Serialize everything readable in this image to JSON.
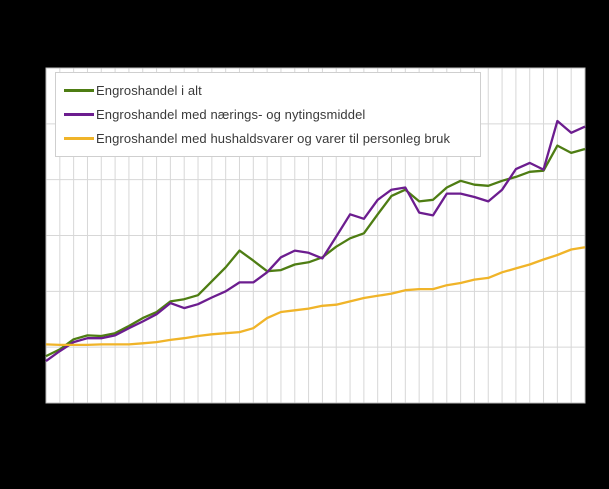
{
  "page": {
    "background_color": "#000000",
    "note": "axis tick labels are not visible in the image"
  },
  "plot": {
    "bg_color": "#ffffff",
    "grid_color": "#d7d7d7",
    "border_color": "#bdbdbd",
    "legend_border_color": "#cfcfcf",
    "legend_text_color": "#3a3a3a"
  },
  "chart_data": {
    "type": "line",
    "title": "",
    "xlabel": "",
    "ylabel": "",
    "x_tick_labels_visible": false,
    "y_tick_labels_visible": false,
    "ylim": [
      80,
      140
    ],
    "y_grid_step": 10,
    "grid": true,
    "legend_position": "top-left",
    "series": [
      {
        "name": "Engroshandel i alt",
        "color": "#4e7d13",
        "values": [
          88.4,
          89.6,
          91.4,
          92.1,
          92.0,
          92.5,
          93.8,
          95.2,
          96.3,
          98.2,
          98.6,
          99.3,
          101.8,
          104.3,
          107.3,
          105.5,
          103.6,
          103.8,
          104.8,
          105.2,
          106.1,
          108.0,
          109.5,
          110.4,
          113.8,
          117.1,
          118.2,
          116.1,
          116.4,
          118.6,
          119.8,
          119.1,
          118.9,
          119.8,
          120.5,
          121.4,
          121.6,
          126.1,
          124.8,
          125.5
        ]
      },
      {
        "name": "Engroshandel med nærings- og nytingsmiddel",
        "color": "#6c1d8f",
        "values": [
          87.5,
          89.3,
          90.9,
          91.6,
          91.6,
          92.1,
          93.4,
          94.6,
          95.9,
          97.9,
          97.0,
          97.7,
          98.9,
          100.0,
          101.6,
          101.6,
          103.4,
          106.1,
          107.3,
          106.9,
          105.9,
          109.8,
          113.8,
          113.0,
          116.4,
          118.2,
          118.6,
          114.1,
          113.6,
          117.5,
          117.5,
          116.9,
          116.1,
          118.2,
          121.9,
          123.0,
          121.8,
          130.5,
          128.4,
          129.5
        ]
      },
      {
        "name": "Engroshandel med hushaldsvarer og varer til personleg bruk",
        "color": "#f0b429",
        "values": [
          90.5,
          90.4,
          90.4,
          90.4,
          90.5,
          90.5,
          90.5,
          90.7,
          90.9,
          91.3,
          91.6,
          92.0,
          92.3,
          92.5,
          92.7,
          93.4,
          95.2,
          96.3,
          96.6,
          96.9,
          97.4,
          97.6,
          98.2,
          98.8,
          99.2,
          99.6,
          100.2,
          100.4,
          100.4,
          101.1,
          101.5,
          102.1,
          102.4,
          103.4,
          104.1,
          104.8,
          105.7,
          106.5,
          107.5,
          107.9
        ]
      }
    ]
  }
}
